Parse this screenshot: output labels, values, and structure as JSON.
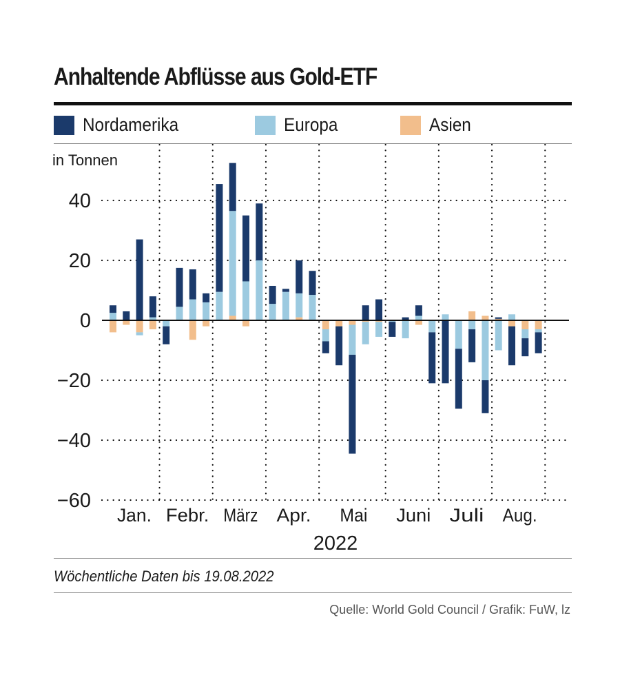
{
  "title": "Anhaltende Abflüsse aus Gold-ETF",
  "legend": [
    {
      "label": "Nordamerika",
      "color": "#1b3a6b"
    },
    {
      "label": "Europa",
      "color": "#9ccae0"
    },
    {
      "label": "Asien",
      "color": "#f2be8c"
    }
  ],
  "footnote": "Wöchentliche Daten bis 19.08.2022",
  "source": "Quelle: World Gold Council / Grafik: FuW, lz",
  "chart_data": {
    "type": "bar",
    "stacked": true,
    "ylabel": "in Tonnen",
    "xlabel": "2022",
    "ylim": [
      -60,
      55
    ],
    "yticks": [
      40,
      20,
      0,
      -20,
      -40,
      -60
    ],
    "ytick_labels": [
      "40",
      "20",
      "0",
      "−20",
      "−40",
      "−60"
    ],
    "months": [
      "Jan.",
      "Febr.",
      "März",
      "Apr.",
      "Mai",
      "Juni",
      "Juli",
      "Aug."
    ],
    "month_boundaries": [
      4,
      8,
      12,
      16,
      21,
      25,
      29,
      33
    ],
    "weeks": 33,
    "series": [
      {
        "name": "Nordamerika",
        "values": [
          2.5,
          3,
          27,
          7,
          -6,
          13,
          10,
          3,
          36,
          16,
          22,
          19,
          6,
          1,
          11,
          8,
          -4,
          -13,
          -33,
          5,
          7,
          -5,
          1,
          3.5,
          -17,
          -21,
          -20,
          -11,
          -11,
          0.5,
          -13,
          -6,
          -7
        ]
      },
      {
        "name": "Europa",
        "values": [
          2.5,
          0,
          -1,
          1,
          -2,
          4.5,
          7,
          6,
          9.5,
          35,
          13,
          20,
          5.5,
          9.5,
          8,
          8.5,
          -4,
          0,
          -10,
          -7.5,
          -5,
          -0.5,
          -6,
          1.5,
          -4,
          2,
          -9.5,
          -3,
          -20,
          -10,
          2,
          -3,
          -1
        ]
      },
      {
        "name": "Asien",
        "values": [
          -4,
          -1.5,
          -4,
          -3,
          0,
          0,
          -6.5,
          -2,
          0,
          1.5,
          -2,
          0,
          0,
          0,
          1,
          0,
          -3,
          -2,
          -1.5,
          -0.5,
          -0.5,
          0,
          0,
          -1.5,
          0,
          0,
          0,
          3,
          1.5,
          0.5,
          -2,
          -3,
          -3
        ]
      }
    ]
  }
}
